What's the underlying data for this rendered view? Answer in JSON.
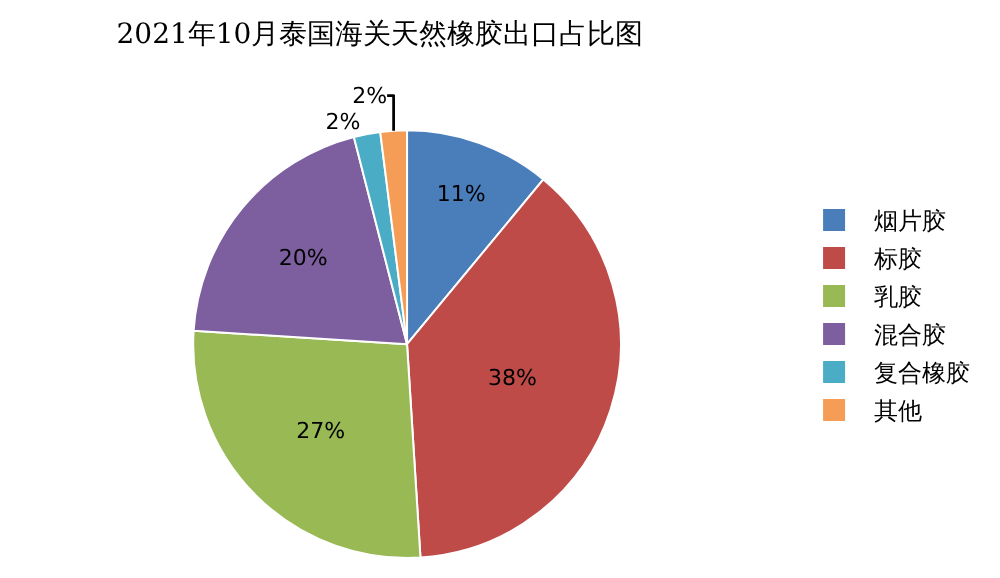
{
  "chart_data": {
    "type": "pie",
    "title": "2021年10月泰国海关天然橡胶出口占比图",
    "categories": [
      "烟片胶",
      "标胶",
      "乳胶",
      "混合胶",
      "复合橡胶",
      "其他"
    ],
    "values": [
      11,
      38,
      27,
      20,
      2,
      2
    ],
    "value_labels": [
      "11%",
      "38%",
      "27%",
      "20%",
      "2%",
      "2%"
    ],
    "colors": [
      "#4a7ebb",
      "#be4b48",
      "#98b954",
      "#7d5fa0",
      "#4bacc6",
      "#f59d56"
    ],
    "legend": "right"
  }
}
